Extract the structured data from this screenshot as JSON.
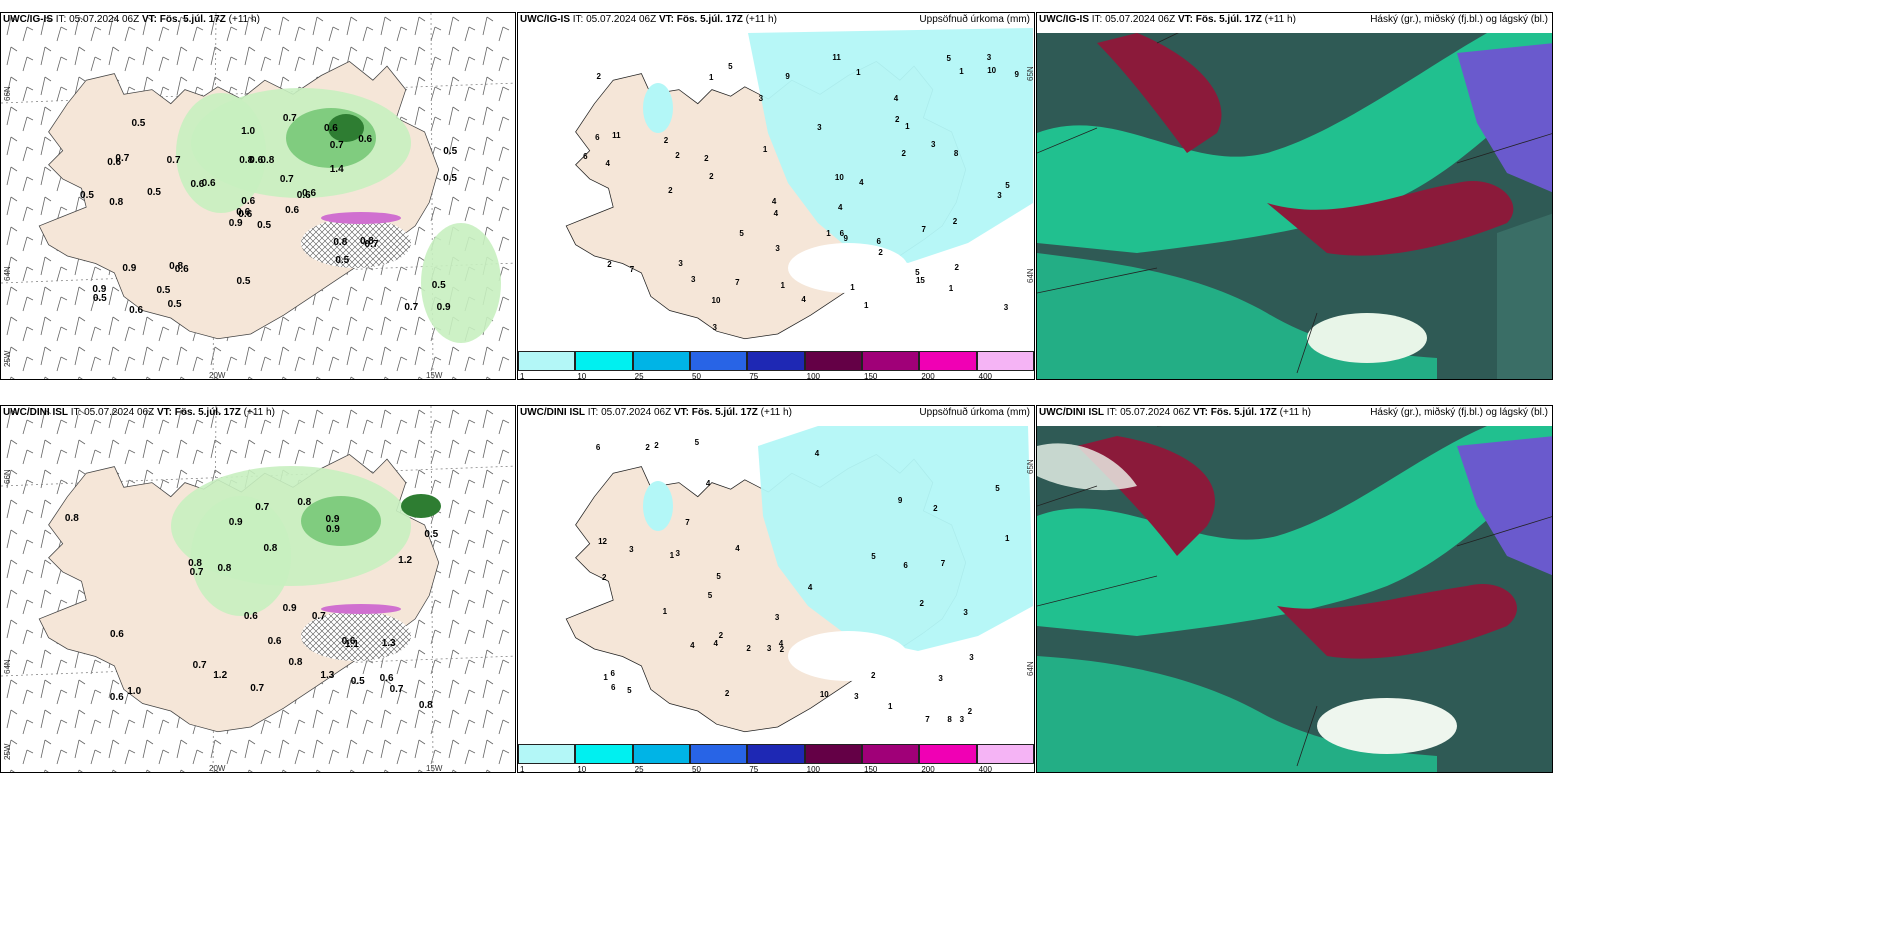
{
  "rows": [
    {
      "model": "UWC/IG-IS",
      "left_title": {
        "model": "UWC/IG-IS",
        "it_label": "IT:",
        "it_value": "05.07.2024 06Z",
        "vt_label": "VT:",
        "vt_value": "Fös. 5.júl. 17Z",
        "lead": "(+11 h)"
      },
      "mid_title": {
        "model": "UWC/IG-IS",
        "it_label": "IT:",
        "it_value": "05.07.2024 06Z",
        "vt_label": "VT:",
        "vt_value": "Fös. 5.júl. 17Z",
        "lead": "(+11 h)",
        "right": "Uppsöfnuð úrkoma (mm)"
      },
      "right_title": {
        "model": "UWC/IG-IS",
        "it_label": "IT:",
        "it_value": "05.07.2024 06Z",
        "vt_label": "VT:",
        "vt_value": "Fös. 5.júl. 17Z",
        "lead": "(+11 h)",
        "right": "Háský (gr.), miðský (fj.bl.) og lágský (bl.)"
      },
      "left_values": [
        "0.5",
        "0.6",
        "0.6",
        "0.9",
        "0.6",
        "0.6",
        "0.6",
        "0.8",
        "0.7",
        "0.6",
        "0.5",
        "0.9",
        "0.8",
        "0.5",
        "0.9",
        "1.4",
        "0.6",
        "0.8",
        "0.7",
        "0.9",
        "0.6",
        "0.5",
        "0.5",
        "0.6",
        "0.6",
        "0.7",
        "0.7",
        "1.0",
        "0.5",
        "0.8",
        "0.5",
        "0.6",
        "0.5",
        "0.6",
        "0.7",
        "0.6",
        "0.8",
        "0.7",
        "0.5",
        "0.8",
        "0.7",
        "0.6",
        "0.5",
        "0.5",
        "0.5"
      ],
      "mid_values": [
        "1",
        "1",
        "3",
        "2",
        "3",
        "1",
        "3",
        "2",
        "4",
        "3",
        "7",
        "6",
        "4",
        "6",
        "2",
        "5",
        "4",
        "1",
        "7",
        "8",
        "5",
        "9",
        "10",
        "15",
        "4",
        "1",
        "2",
        "2",
        "4",
        "3",
        "2",
        "3",
        "4",
        "7",
        "5",
        "1",
        "11",
        "11",
        "5",
        "6",
        "9",
        "10",
        "9",
        "2",
        "1",
        "2",
        "1",
        "3",
        "4",
        "10",
        "5",
        "3",
        "2",
        "2",
        "2",
        "3",
        "1",
        "1",
        "3",
        "2",
        "6"
      ],
      "lon_labels": [
        "20W",
        "15W"
      ],
      "lat_labels": [
        "66N",
        "64N",
        "25W"
      ],
      "mid_lat_labels": [
        "65N",
        "64N"
      ]
    },
    {
      "model": "UWC/DINI ISL",
      "left_title": {
        "model": "UWC/DINI ISL",
        "it_label": "IT:",
        "it_value": "05.07.2024 06Z",
        "vt_label": "VT:",
        "vt_value": "Fös. 5.júl. 17Z",
        "lead": "(+11 h)"
      },
      "mid_title": {
        "model": "UWC/DINI ISL",
        "it_label": "IT:",
        "it_value": "05.07.2024 06Z",
        "vt_label": "VT:",
        "vt_value": "Fös. 5.júl. 17Z",
        "lead": "(+11 h)",
        "right": "Uppsöfnuð úrkoma (mm)"
      },
      "right_title": {
        "model": "UWC/DINI ISL",
        "it_label": "IT:",
        "it_value": "05.07.2024 06Z",
        "vt_label": "VT:",
        "vt_value": "Fös. 5.júl. 17Z",
        "lead": "(+11 h)",
        "right": "Háský (gr.), miðský (fj.bl.) og lágský (bl.)"
      },
      "left_values": [
        "0.6",
        "1.3",
        "0.9",
        "0.6",
        "0.9",
        "0.8",
        "0.6",
        "0.9",
        "0.5",
        "0.7",
        "0.8",
        "0.7",
        "1.2",
        "0.7",
        "1.3",
        "0.8",
        "0.6",
        "0.6",
        "0.6",
        "0.5",
        "0.8",
        "1.0",
        "0.7",
        "0.7",
        "1.1",
        "0.9",
        "0.8",
        "0.8",
        "1.2",
        "0.8",
        "0.7"
      ],
      "mid_values": [
        "3",
        "1",
        "2",
        "2",
        "3",
        "4",
        "3",
        "5",
        "4",
        "6",
        "7",
        "4",
        "6",
        "7",
        "5",
        "2",
        "4",
        "1",
        "5",
        "4",
        "8",
        "3",
        "3",
        "4",
        "3",
        "5",
        "10",
        "6",
        "2",
        "1",
        "2",
        "2",
        "5",
        "3",
        "9",
        "12",
        "3",
        "2",
        "1",
        "2",
        "2",
        "2",
        "3",
        "1",
        "2",
        "6",
        "4",
        "7",
        "5"
      ],
      "lon_labels": [
        "20W",
        "15W"
      ],
      "lat_labels": [
        "66N",
        "64N",
        "25W"
      ],
      "mid_lat_labels": [
        "65N",
        "64N"
      ]
    }
  ],
  "colorbar": {
    "ticks": [
      "1",
      "10",
      "25",
      "50",
      "75",
      "100",
      "150",
      "200",
      "400"
    ],
    "colors": [
      "#b3f7f7",
      "#00f0f0",
      "#00b4e6",
      "#2864e6",
      "#1e28b4",
      "#640046",
      "#a00078",
      "#f000b4",
      "#f5b4f5"
    ]
  },
  "colors": {
    "land": "#f5e6d8",
    "light_green": "#c8f0c0",
    "mid_green": "#78c878",
    "dark_green": "#2e7d32",
    "cyan": "#b3f7f7",
    "cloud_dark": "#2f5a55",
    "cloud_teal": "#1ed29a",
    "cloud_red": "#8b1a3a",
    "cloud_blue": "#6a5acd"
  }
}
